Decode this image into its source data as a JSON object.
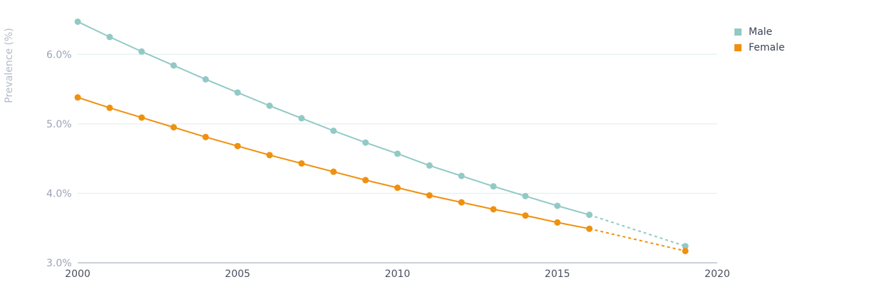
{
  "chart_data": {
    "type": "line",
    "title": "",
    "xlabel": "",
    "ylabel": "Prevalence (%)",
    "xlim": [
      2000,
      2020
    ],
    "ylim": [
      3.0,
      6.7
    ],
    "x_ticks": [
      2000,
      2005,
      2010,
      2015,
      2020
    ],
    "y_ticks": [
      {
        "value": 3.0,
        "label": "3.0%"
      },
      {
        "value": 4.0,
        "label": "4.0%"
      },
      {
        "value": 5.0,
        "label": "5.0%"
      },
      {
        "value": 6.0,
        "label": "6.0%"
      }
    ],
    "series": [
      {
        "name": "Male",
        "color": "#92c9c6",
        "x": [
          2000,
          2001,
          2002,
          2003,
          2004,
          2005,
          2006,
          2007,
          2008,
          2009,
          2010,
          2011,
          2012,
          2013,
          2014,
          2015,
          2016,
          2019
        ],
        "values": [
          6.47,
          6.25,
          6.04,
          5.84,
          5.64,
          5.45,
          5.26,
          5.08,
          4.9,
          4.73,
          4.57,
          4.4,
          4.25,
          4.1,
          3.96,
          3.82,
          3.69,
          3.24
        ],
        "projected_from_index": 16
      },
      {
        "name": "Female",
        "color": "#f0900e",
        "x": [
          2000,
          2001,
          2002,
          2003,
          2004,
          2005,
          2006,
          2007,
          2008,
          2009,
          2010,
          2011,
          2012,
          2013,
          2014,
          2015,
          2016,
          2019
        ],
        "values": [
          5.38,
          5.23,
          5.09,
          4.95,
          4.81,
          4.68,
          4.55,
          4.43,
          4.31,
          4.19,
          4.08,
          3.97,
          3.87,
          3.77,
          3.68,
          3.58,
          3.49,
          3.17
        ],
        "projected_from_index": 16
      }
    ],
    "legend": [
      {
        "label": "Male",
        "color": "#92c9c6"
      },
      {
        "label": "Female",
        "color": "#f0900e"
      }
    ],
    "legend_position": "top-right",
    "grid": true
  }
}
